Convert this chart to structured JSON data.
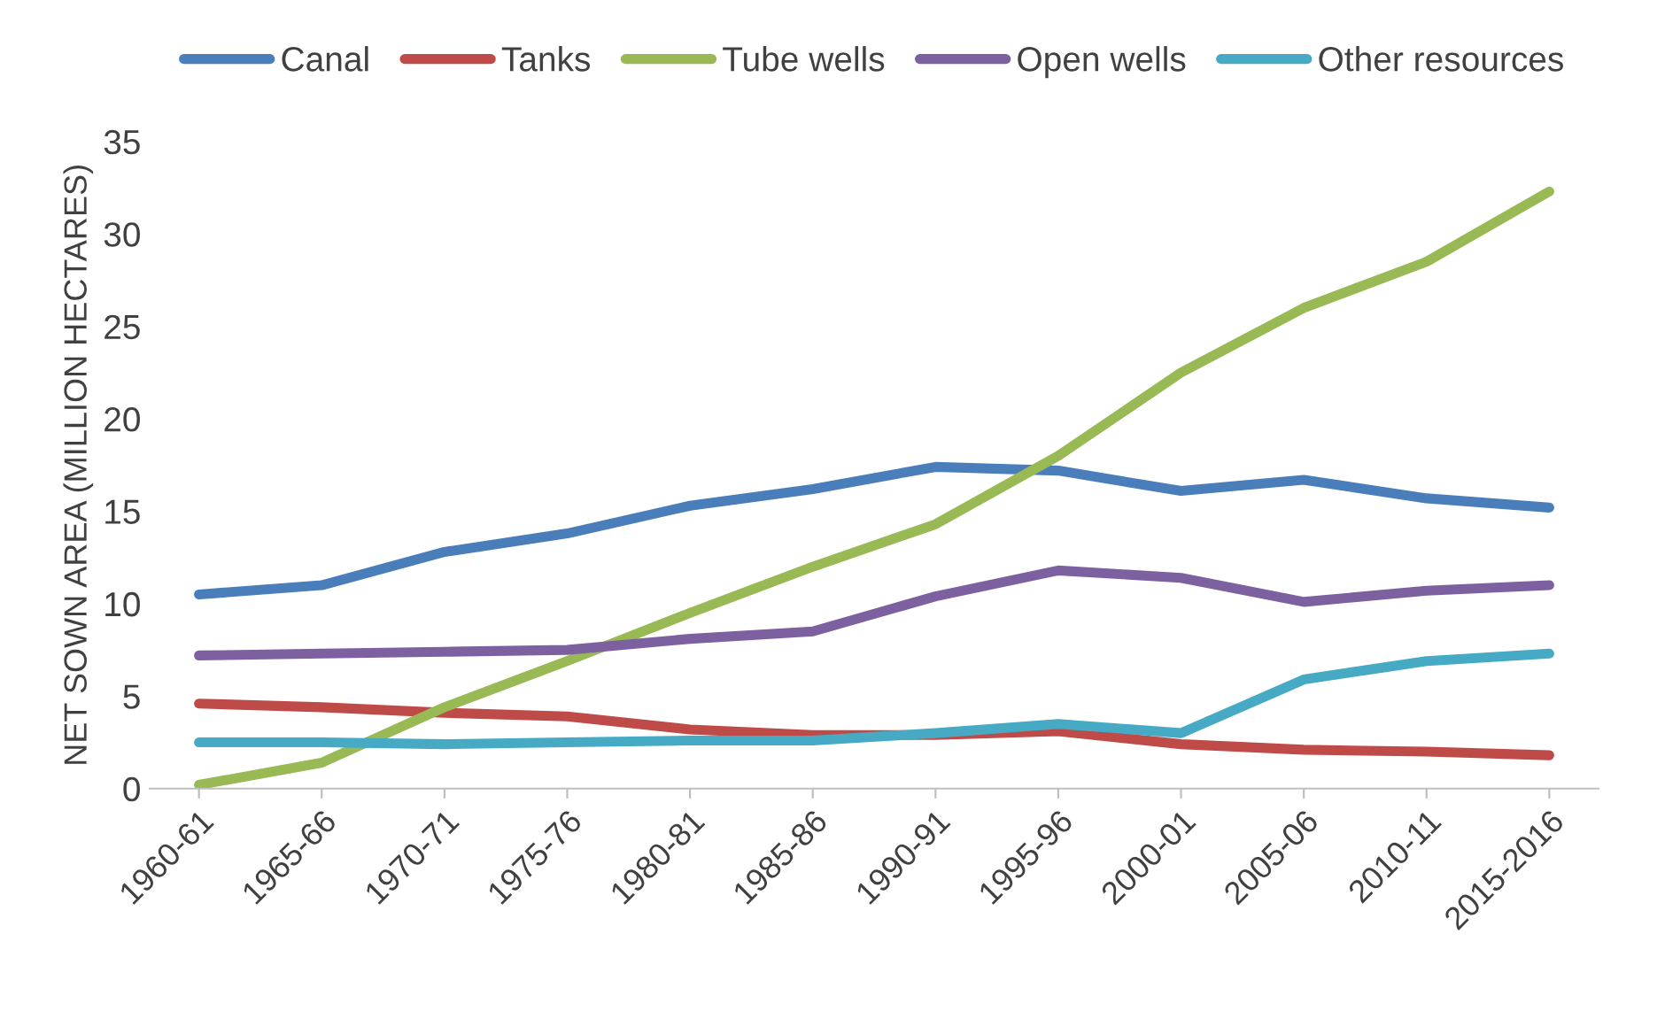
{
  "chart_data": {
    "type": "line",
    "ylabel": "NET SOWN AREA (MILLION HECTARES)",
    "categories": [
      "1960-61",
      "1965-66",
      "1970-71",
      "1975-76",
      "1980-81",
      "1985-86",
      "1990-91",
      "1995-96",
      "2000-01",
      "2005-06",
      "2010-11",
      "2015-2016"
    ],
    "series": [
      {
        "name": "Canal",
        "color": "#4a7ebb",
        "values": [
          10.5,
          11,
          12.8,
          13.8,
          15.3,
          16.2,
          17.4,
          17.2,
          16.1,
          16.7,
          15.7,
          15.2
        ]
      },
      {
        "name": "Tanks",
        "color": "#be4b48",
        "values": [
          4.6,
          4.4,
          4.1,
          3.9,
          3.2,
          2.9,
          2.9,
          3.1,
          2.4,
          2.1,
          2.0,
          1.8
        ]
      },
      {
        "name": "Tube wells",
        "color": "#98b954",
        "values": [
          0.2,
          1.4,
          4.4,
          6.9,
          9.5,
          12.0,
          14.3,
          18.0,
          22.5,
          26.0,
          28.5,
          32.3
        ]
      },
      {
        "name": "Open wells",
        "color": "#7d60a0",
        "values": [
          7.2,
          7.3,
          7.4,
          7.5,
          8.1,
          8.5,
          10.4,
          11.8,
          11.4,
          10.1,
          10.7,
          11.0
        ]
      },
      {
        "name": "Other resources",
        "color": "#46aac5",
        "values": [
          2.5,
          2.5,
          2.4,
          2.5,
          2.6,
          2.6,
          3.0,
          3.5,
          3.0,
          5.9,
          6.9,
          7.3
        ]
      }
    ],
    "ylim": [
      0,
      35
    ],
    "yticks": [
      0,
      5,
      10,
      15,
      20,
      25,
      30,
      35
    ],
    "grid": false,
    "legend": "top",
    "marker": "none",
    "line_style": "solid"
  }
}
